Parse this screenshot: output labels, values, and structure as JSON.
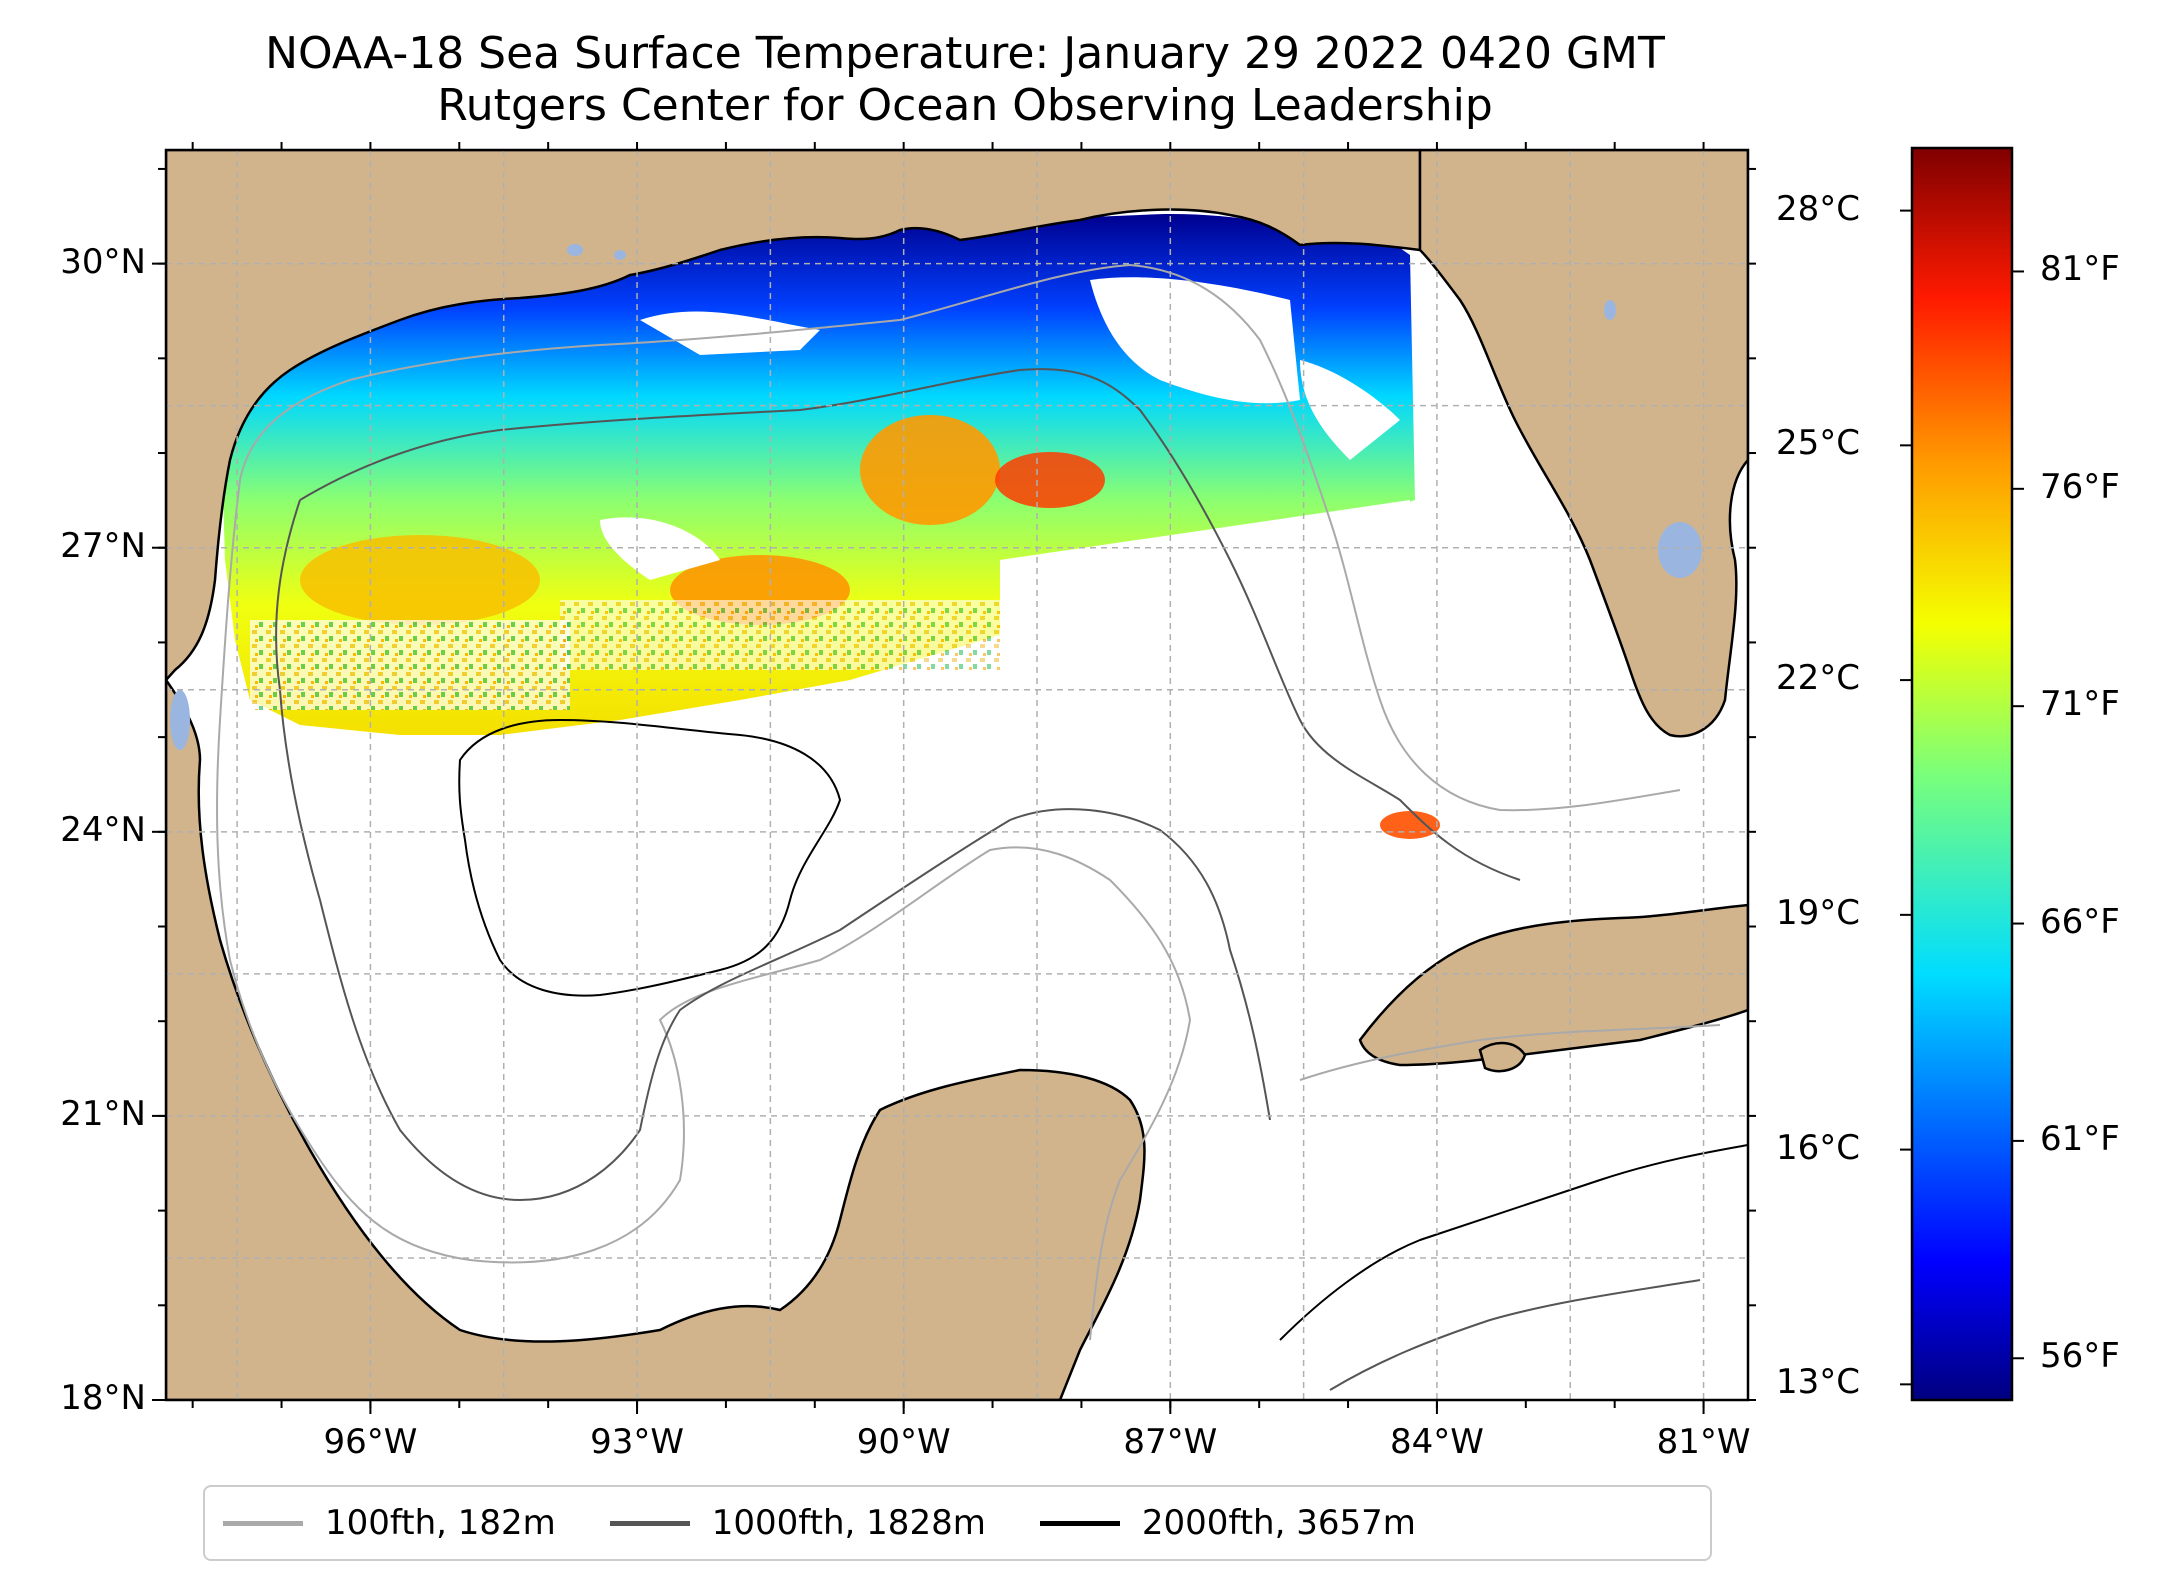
{
  "title": {
    "line1": "NOAA-18 Sea Surface Temperature: January 29 2022 0420 GMT",
    "line2": "Rutgers Center for Ocean Observing Leadership"
  },
  "map": {
    "lat_range": [
      18,
      31.2
    ],
    "lon_range": [
      -98.3,
      -80.5
    ],
    "lat_ticks": [
      {
        "value": 30,
        "label": "30°N"
      },
      {
        "value": 27,
        "label": "27°N"
      },
      {
        "value": 24,
        "label": "24°N"
      },
      {
        "value": 21,
        "label": "21°N"
      },
      {
        "value": 18,
        "label": "18°N"
      }
    ],
    "lon_ticks": [
      {
        "value": -96,
        "label": "96°W"
      },
      {
        "value": -93,
        "label": "93°W"
      },
      {
        "value": -90,
        "label": "90°W"
      },
      {
        "value": -87,
        "label": "87°W"
      },
      {
        "value": -84,
        "label": "84°W"
      },
      {
        "value": -81,
        "label": "81°W"
      }
    ],
    "gridlines": true,
    "land_color": "#d2b48c",
    "lake_color": "#9ab6e0"
  },
  "colorbar": {
    "colormap": "jet",
    "range_c": [
      12.8,
      28.8
    ],
    "celsius_ticks": [
      {
        "value": 28,
        "label": "28°C"
      },
      {
        "value": 25,
        "label": "25°C"
      },
      {
        "value": 22,
        "label": "22°C"
      },
      {
        "value": 19,
        "label": "19°C"
      },
      {
        "value": 16,
        "label": "16°C"
      },
      {
        "value": 13,
        "label": "13°C"
      }
    ],
    "fahrenheit_ticks": [
      {
        "value": 81,
        "label": "81°F"
      },
      {
        "value": 76,
        "label": "76°F"
      },
      {
        "value": 71,
        "label": "71°F"
      },
      {
        "value": 66,
        "label": "66°F"
      },
      {
        "value": 61,
        "label": "61°F"
      },
      {
        "value": 56,
        "label": "56°F"
      }
    ]
  },
  "legend": {
    "placement": "bottom-center",
    "items": [
      {
        "label": "100fth, 182m",
        "color": "#a9a9a9"
      },
      {
        "label": "1000fth, 1828m",
        "color": "#555555"
      },
      {
        "label": "2000fth, 3657m",
        "color": "#000000"
      }
    ]
  }
}
